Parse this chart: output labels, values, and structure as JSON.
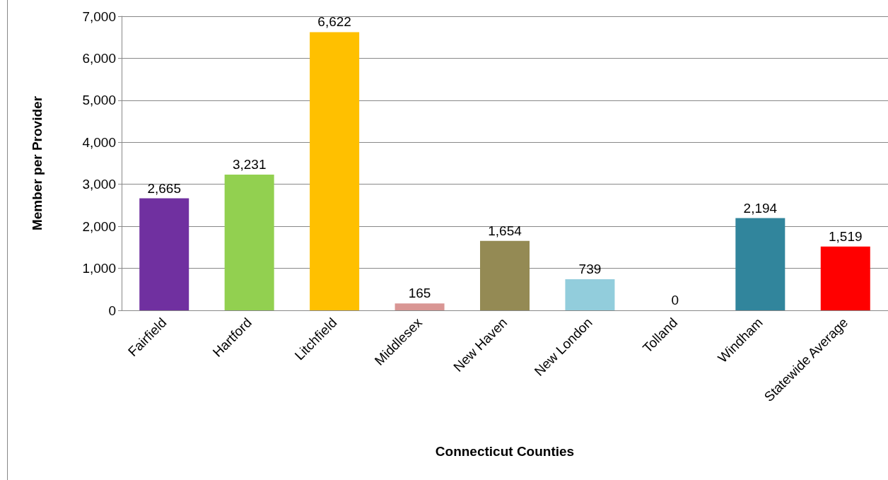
{
  "chart_data": {
    "type": "bar",
    "xlabel": "Connecticut Counties",
    "ylabel": "Member per Provider",
    "categories": [
      "Fairfield",
      "Hartford",
      "Litchfield",
      "Middlesex",
      "New Haven",
      "New London",
      "Tolland",
      "Windham",
      "Statewide Average"
    ],
    "values": [
      2665,
      3231,
      6622,
      165,
      1654,
      739,
      0,
      2194,
      1519
    ],
    "value_labels": [
      "2,665",
      "3,231",
      "6,622",
      "165",
      "1,654",
      "739",
      "0",
      "2,194",
      "1,519"
    ],
    "colors": [
      "#7030a0",
      "#92d050",
      "#ffc000",
      "#d99694",
      "#948a54",
      "#92cddc",
      "#4bacc6",
      "#31859c",
      "#ff0000"
    ],
    "ylim": [
      0,
      7000
    ],
    "yticks": [
      0,
      {
        "value": 1000,
        "label": "1,000"
      },
      {
        "value": 2000,
        "label": "2,000"
      },
      {
        "value": 3000,
        "label": "3,000"
      },
      {
        "value": 4000,
        "label": "4,000"
      },
      {
        "value": 5000,
        "label": "5,000"
      },
      {
        "value": 6000,
        "label": "6,000"
      },
      {
        "value": 7000,
        "label": "7,000"
      }
    ],
    "grid": "y"
  }
}
